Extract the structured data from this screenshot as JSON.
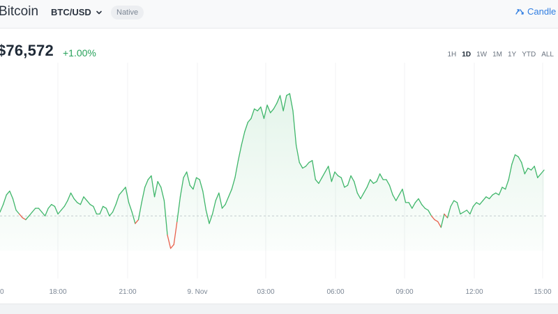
{
  "header": {
    "asset_name": "Bitcoin",
    "pair": "BTC/USD",
    "badge": "Native",
    "chart_mode_label": "Candle"
  },
  "price": {
    "value": "$76,572",
    "change": "+1.00%"
  },
  "ranges": [
    "1H",
    "1D",
    "1W",
    "1M",
    "1Y",
    "YTD",
    "ALL"
  ],
  "active_range": "1D",
  "colors": {
    "accent": "#2f7de1",
    "up": "#27a15a",
    "down": "#e8604c",
    "line": "#3fb66a"
  },
  "chart_data": {
    "type": "line",
    "x_ticks": [
      "0",
      "18:00",
      "21:00",
      "9. Nov",
      "03:00",
      "06:00",
      "09:00",
      "12:00",
      "15:00"
    ],
    "baseline_value": 0,
    "values": [
      2,
      6,
      11,
      13,
      9,
      3,
      1,
      -1,
      -2,
      0,
      2,
      4,
      4,
      2,
      0,
      4,
      6,
      5,
      1,
      3,
      5,
      8,
      12,
      9,
      7,
      6,
      10,
      8,
      6,
      5,
      1,
      1,
      5,
      4,
      0,
      2,
      6,
      11,
      13,
      15,
      7,
      2,
      -4,
      -2,
      7,
      15,
      19,
      21,
      10,
      18,
      15,
      8,
      -10,
      -17,
      -15,
      -3,
      10,
      20,
      23,
      16,
      14,
      20,
      19,
      13,
      3,
      -4,
      1,
      8,
      12,
      4,
      6,
      10,
      14,
      20,
      29,
      37,
      44,
      49,
      51,
      56,
      55,
      57,
      51,
      58,
      54,
      56,
      59,
      63,
      55,
      63,
      64,
      55,
      37,
      28,
      25,
      26,
      28,
      29,
      19,
      17,
      20,
      23,
      26,
      18,
      23,
      21,
      20,
      15,
      16,
      21,
      18,
      12,
      9,
      12,
      15,
      19,
      17,
      18,
      22,
      19,
      19,
      16,
      11,
      8,
      11,
      14,
      7,
      7,
      4,
      7,
      9,
      6,
      4,
      3,
      0,
      -2,
      -3,
      -6,
      1,
      -1,
      5,
      8,
      7,
      1,
      2,
      3,
      1,
      5,
      7,
      6,
      8,
      10,
      9,
      11,
      12,
      11,
      15,
      14,
      19,
      27,
      32,
      31,
      28,
      22,
      25,
      24,
      26,
      20,
      22,
      24
    ]
  }
}
